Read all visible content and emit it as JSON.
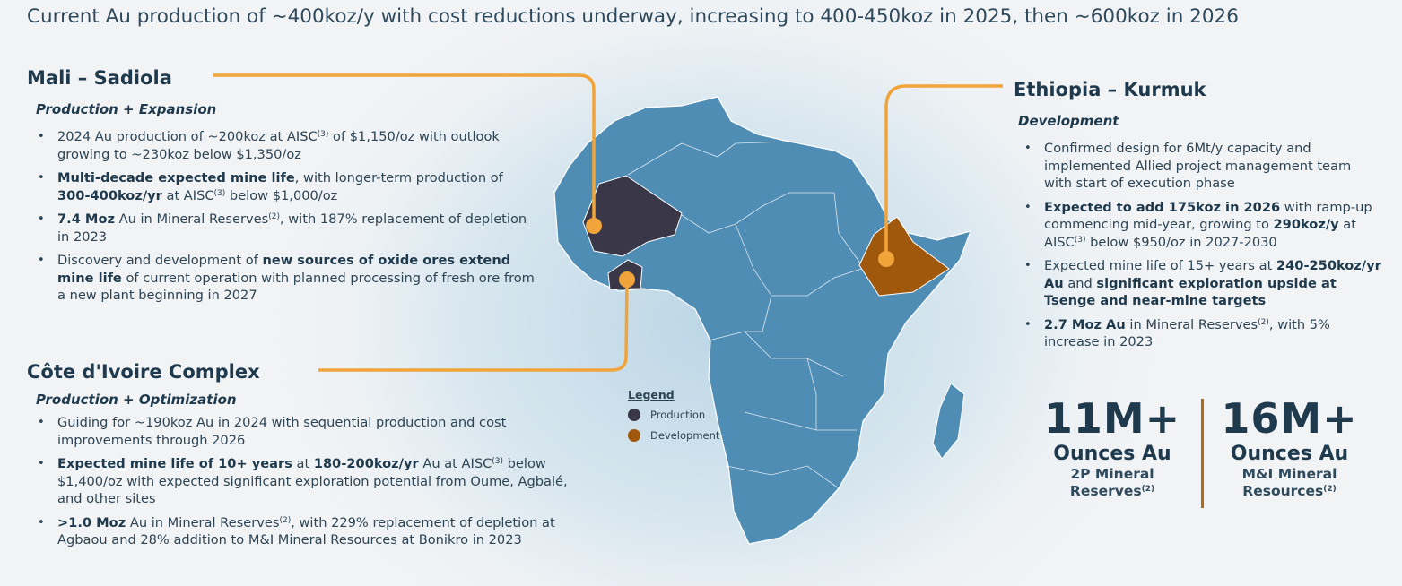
{
  "title": "Current Au production of ~400koz/y with cost reductions underway, increasing to 400-450koz in 2025, then ~600koz in 2026",
  "colors": {
    "production": "#3a3848",
    "development": "#a0580c",
    "connector": "#f0a43a",
    "land": "#4f8db5",
    "heading": "#1f3a4d"
  },
  "mali": {
    "heading": "Mali – Sadiola",
    "subheading": "Production + Expansion",
    "bullets": [
      [
        {
          "t": "2024 Au production of ~200koz at AISC"
        },
        {
          "t": "(3)",
          "sup": true
        },
        {
          "t": " of $1,150/oz with outlook growing to ~230koz below $1,350/oz"
        }
      ],
      [
        {
          "t": "Multi-decade expected mine life",
          "b": true
        },
        {
          "t": ", with longer-term production of "
        },
        {
          "t": "300-400koz/yr",
          "b": true
        },
        {
          "t": " at AISC"
        },
        {
          "t": "(3)",
          "sup": true
        },
        {
          "t": " below $1,000/oz"
        }
      ],
      [
        {
          "t": "7.4 Moz",
          "b": true
        },
        {
          "t": " Au in Mineral Reserves"
        },
        {
          "t": "(2)",
          "sup": true
        },
        {
          "t": ", with 187% replacement of depletion in 2023"
        }
      ],
      [
        {
          "t": "Discovery and development of "
        },
        {
          "t": "new sources of oxide ores extend mine life",
          "b": true
        },
        {
          "t": " of current operation with planned processing of fresh ore from a new plant beginning in 2027"
        }
      ]
    ]
  },
  "cote": {
    "heading": "Côte d'Ivoire Complex",
    "subheading": "Production + Optimization",
    "bullets": [
      [
        {
          "t": "Guiding for ~190koz Au in 2024 with sequential production and cost improvements through 2026"
        }
      ],
      [
        {
          "t": "Expected mine life of 10+ years",
          "b": true
        },
        {
          "t": " at "
        },
        {
          "t": "180-200koz/yr",
          "b": true
        },
        {
          "t": " Au at AISC"
        },
        {
          "t": "(3)",
          "sup": true
        },
        {
          "t": " below $1,400/oz with expected significant exploration potential from Oume, Agbalé, and other sites"
        }
      ],
      [
        {
          "t": ">1.0 Moz",
          "b": true
        },
        {
          "t": " Au in Mineral Reserves"
        },
        {
          "t": "(2)",
          "sup": true
        },
        {
          "t": ", with 229% replacement of depletion at Agbaou and 28% addition to M&I Mineral Resources at Bonikro in 2023"
        }
      ]
    ]
  },
  "ethiopia": {
    "heading": "Ethiopia – Kurmuk",
    "subheading": "Development",
    "bullets": [
      [
        {
          "t": "Confirmed design for 6Mt/y capacity and implemented Allied project management team with start of execution phase"
        }
      ],
      [
        {
          "t": "Expected to add 175koz in 2026",
          "b": true
        },
        {
          "t": " with ramp-up commencing mid-year, growing to "
        },
        {
          "t": "290koz/y",
          "b": true
        },
        {
          "t": " at AISC"
        },
        {
          "t": "(3)",
          "sup": true
        },
        {
          "t": " below $950/oz in 2027-2030"
        }
      ],
      [
        {
          "t": "Expected mine life of 15+ years at "
        },
        {
          "t": "240-250koz/yr Au",
          "b": true
        },
        {
          "t": " and "
        },
        {
          "t": "significant exploration upside at Tsenge and near-mine targets",
          "b": true
        }
      ],
      [
        {
          "t": "2.7 Moz Au",
          "b": true
        },
        {
          "t": " in Mineral Reserves"
        },
        {
          "t": "(2)",
          "sup": true
        },
        {
          "t": ", with 5% increase in 2023"
        }
      ]
    ]
  },
  "legend": {
    "title": "Legend",
    "items": [
      {
        "label": "Production"
      },
      {
        "label": "Development"
      }
    ]
  },
  "stats": [
    {
      "value": "11M+",
      "label": "Ounces Au",
      "sub1": "2P Mineral",
      "sub2": "Reserves",
      "sup": "(2)"
    },
    {
      "value": "16M+",
      "label": "Ounces Au",
      "sub1": "M&I Mineral",
      "sub2": "Resources",
      "sup": "(2)"
    }
  ]
}
